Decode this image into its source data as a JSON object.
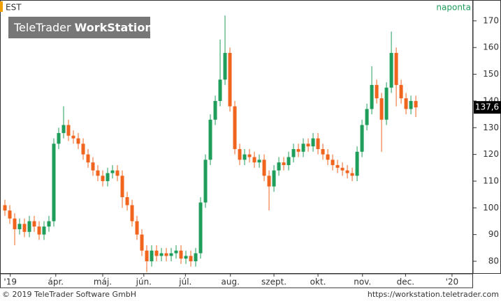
{
  "chart_data": {
    "type": "candlestick",
    "symbol": "EST",
    "interval": "naponta",
    "logo": {
      "light": "TeleTrader",
      "bold": "WorkStation"
    },
    "copyright": "© 2019 TeleTrader Software GmbH",
    "url": "https://workstation.teletrader.com",
    "up_color": "#1e9e5a",
    "down_color": "#f0641e",
    "xlim": [
      -1,
      95.7
    ],
    "xticks": [
      {
        "value": 1.1,
        "label": "'19"
      },
      {
        "value": 10.4,
        "label": "ápr."
      },
      {
        "value": 20,
        "label": "máj."
      },
      {
        "value": 28.4,
        "label": "jún."
      },
      {
        "value": 36.9,
        "label": "júl."
      },
      {
        "value": 46.1,
        "label": "aug."
      },
      {
        "value": 55,
        "label": "szept."
      },
      {
        "value": 64,
        "label": "okt."
      },
      {
        "value": 73.1,
        "label": "nov."
      },
      {
        "value": 81.9,
        "label": "dec."
      },
      {
        "value": 91.4,
        "label": "'20"
      }
    ],
    "ylim": [
      75.3,
      177.8
    ],
    "yticks": [
      80,
      90,
      100,
      110,
      120,
      130,
      140,
      150,
      160,
      170
    ],
    "last": {
      "value": 137.6,
      "label": "137,6"
    },
    "open": [
      101,
      99,
      96,
      92,
      94,
      91,
      95,
      93,
      90,
      93,
      95,
      124,
      128,
      131,
      127,
      126,
      124,
      120,
      117,
      114,
      112,
      110,
      113,
      114,
      112,
      104,
      101,
      95,
      90,
      84,
      80,
      84,
      82,
      83,
      82,
      83,
      84,
      81,
      82,
      80,
      83,
      102,
      118,
      133,
      140,
      148,
      158,
      138,
      122,
      118,
      120,
      119,
      117,
      118,
      112,
      108,
      114,
      117,
      116,
      119,
      122,
      121,
      124,
      123,
      126,
      122,
      120,
      118,
      116,
      115,
      114,
      113,
      112,
      121,
      131,
      137,
      146,
      141,
      133,
      145,
      158,
      146,
      141,
      137,
      140
    ],
    "high": [
      103,
      101,
      98,
      96,
      96,
      97,
      97,
      95,
      95,
      97,
      126,
      130,
      138,
      133,
      129,
      128,
      126,
      122,
      119,
      116,
      114,
      115,
      116,
      116,
      114,
      106,
      103,
      97,
      92,
      86,
      86,
      86,
      85,
      85,
      85,
      86,
      86,
      84,
      84,
      85,
      104,
      120,
      135,
      142,
      163,
      172,
      160,
      140,
      124,
      122,
      122,
      121,
      120,
      120,
      114,
      116,
      119,
      119,
      121,
      124,
      124,
      126,
      126,
      128,
      128,
      124,
      122,
      120,
      118,
      117,
      116,
      115,
      123,
      133,
      139,
      153,
      148,
      143,
      147,
      166,
      160,
      148,
      143,
      142,
      142
    ],
    "low": [
      97,
      94,
      86,
      90,
      89,
      89,
      91,
      88,
      88,
      91,
      93,
      122,
      126,
      125,
      124,
      122,
      118,
      115,
      112,
      110,
      108,
      108,
      111,
      110,
      100,
      99,
      93,
      88,
      82,
      76,
      78,
      80,
      80,
      80,
      80,
      81,
      79,
      79,
      78,
      78,
      81,
      100,
      116,
      131,
      138,
      146,
      136,
      120,
      116,
      116,
      117,
      115,
      115,
      110,
      99,
      106,
      112,
      114,
      114,
      117,
      119,
      119,
      121,
      121,
      120,
      118,
      116,
      114,
      113,
      112,
      111,
      110,
      110,
      119,
      129,
      135,
      139,
      121,
      131,
      143,
      138,
      139,
      135,
      135,
      134
    ],
    "close": [
      99,
      96,
      92,
      94,
      91,
      95,
      93,
      90,
      93,
      95,
      124,
      128,
      131,
      127,
      126,
      124,
      120,
      117,
      114,
      112,
      110,
      113,
      114,
      112,
      104,
      101,
      95,
      90,
      84,
      80,
      84,
      82,
      83,
      82,
      83,
      84,
      81,
      82,
      80,
      83,
      102,
      118,
      133,
      140,
      148,
      158,
      138,
      122,
      118,
      120,
      119,
      117,
      118,
      112,
      108,
      114,
      117,
      116,
      119,
      122,
      121,
      124,
      123,
      126,
      122,
      120,
      118,
      116,
      115,
      114,
      113,
      112,
      121,
      131,
      137,
      146,
      141,
      133,
      145,
      158,
      146,
      141,
      137,
      140,
      137.6
    ]
  }
}
